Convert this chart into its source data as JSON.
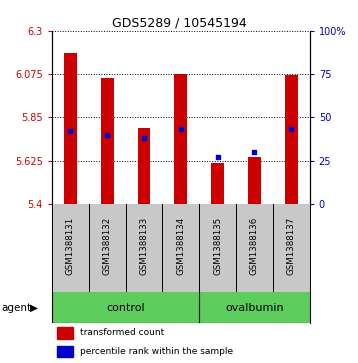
{
  "title": "GDS5289 / 10545194",
  "samples": [
    "GSM1388131",
    "GSM1388132",
    "GSM1388133",
    "GSM1388134",
    "GSM1388135",
    "GSM1388136",
    "GSM1388137"
  ],
  "transformed_count": [
    6.185,
    6.055,
    5.795,
    6.075,
    5.615,
    5.645,
    6.07
  ],
  "percentile_rank": [
    42,
    40,
    38,
    43,
    27,
    30,
    43
  ],
  "ylim_left": [
    5.4,
    6.3
  ],
  "yticks_left": [
    5.4,
    5.625,
    5.85,
    6.075,
    6.3
  ],
  "ytick_labels_left": [
    "5.4",
    "5.625",
    "5.85",
    "6.075",
    "6.3"
  ],
  "ylim_right": [
    0,
    100
  ],
  "yticks_right": [
    0,
    25,
    50,
    75,
    100
  ],
  "ytick_labels_right": [
    "0",
    "25",
    "50",
    "75",
    "100%"
  ],
  "control_count": 4,
  "ovalbumin_count": 3,
  "bar_color": "#CC0000",
  "dot_color": "#0000CC",
  "bar_bottom": 5.4,
  "green_color": "#5DCD5D",
  "gray_color": "#C8C8C8",
  "legend_items": [
    {
      "label": "transformed count",
      "color": "#CC0000"
    },
    {
      "label": "percentile rank within the sample",
      "color": "#0000CC"
    }
  ],
  "background_color": "#ffffff",
  "tick_label_color_left": "#CC0000",
  "tick_label_color_right": "#0000CC",
  "bar_width": 0.35
}
